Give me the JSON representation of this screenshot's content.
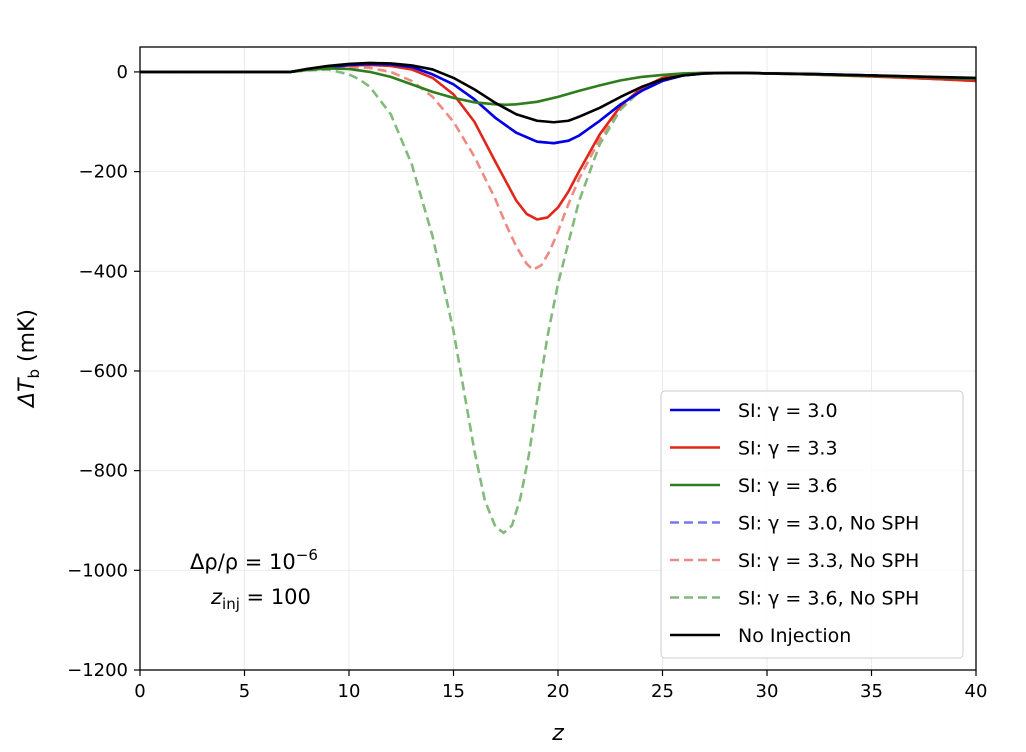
{
  "chart_data": {
    "type": "line",
    "xlabel": "z",
    "ylabel": "ΔT_b (mK)",
    "ylabel_parts": {
      "main": "ΔT",
      "sub": "b",
      "unit": " (mK)"
    },
    "xlim": [
      0,
      40
    ],
    "ylim": [
      -1200,
      50
    ],
    "xticks": [
      0,
      5,
      10,
      15,
      20,
      25,
      30,
      35,
      40
    ],
    "yticks": [
      0,
      -200,
      -400,
      -600,
      -800,
      -1000,
      -1200
    ],
    "xtick_labels": [
      "0",
      "5",
      "10",
      "15",
      "20",
      "25",
      "30",
      "35",
      "40"
    ],
    "ytick_labels": [
      "0",
      "−200",
      "−400",
      "−600",
      "−800",
      "−1000",
      "−1200"
    ],
    "grid": true,
    "legend_position": "lower-right",
    "annotation": {
      "line1": {
        "pre": "Δρ/ρ = 10",
        "sup": "−6"
      },
      "line2": {
        "pre": "z",
        "sub": "inj",
        "post": " = 100"
      }
    },
    "series": [
      {
        "name": "SI: γ = 3.0",
        "color": "#0000e6",
        "style": "solid",
        "x": [
          0,
          7,
          7.2,
          8,
          9,
          10,
          11,
          12,
          13,
          14,
          15,
          16,
          17,
          18,
          19,
          19.8,
          20.5,
          21,
          22,
          23,
          24,
          25,
          26,
          27,
          28,
          29,
          30,
          32,
          35,
          38,
          40
        ],
        "y": [
          0,
          0,
          0,
          5,
          10,
          14,
          16,
          15,
          10,
          -5,
          -25,
          -55,
          -92,
          -122,
          -140,
          -143,
          -138,
          -128,
          -98,
          -65,
          -38,
          -18,
          -7,
          -3,
          -2,
          -2,
          -3,
          -4,
          -7,
          -11,
          -14
        ]
      },
      {
        "name": "SI: γ = 3.3",
        "color": "#e0271a",
        "style": "solid",
        "x": [
          0,
          7,
          7.2,
          8,
          9,
          10,
          11,
          12,
          13,
          14,
          15,
          16,
          17,
          18,
          18.5,
          19,
          19.5,
          20,
          20.5,
          21,
          22,
          23,
          24,
          25,
          26,
          27,
          28,
          29,
          30,
          32,
          35,
          38,
          40
        ],
        "y": [
          0,
          0,
          0,
          5,
          10,
          13,
          14,
          12,
          5,
          -12,
          -45,
          -100,
          -180,
          -258,
          -285,
          -296,
          -292,
          -272,
          -240,
          -200,
          -125,
          -68,
          -32,
          -12,
          -4,
          -2,
          -2,
          -2,
          -3,
          -5,
          -9,
          -14,
          -18
        ]
      },
      {
        "name": "SI: γ = 3.6",
        "color": "#2e7d1e",
        "style": "solid",
        "x": [
          0,
          7,
          7.2,
          8,
          9,
          10,
          11,
          12,
          13,
          14,
          15,
          16,
          17,
          17.5,
          18,
          19,
          20,
          21,
          22,
          23,
          24,
          25,
          26,
          27,
          28,
          29,
          30,
          32,
          35,
          38,
          40
        ],
        "y": [
          0,
          0,
          0,
          4,
          7,
          6,
          0,
          -10,
          -25,
          -40,
          -52,
          -61,
          -65,
          -66,
          -65,
          -60,
          -50,
          -38,
          -27,
          -17,
          -10,
          -6,
          -3,
          -2,
          -2,
          -2,
          -3,
          -5,
          -8,
          -11,
          -14
        ]
      },
      {
        "name": "SI: γ = 3.0, No SPH",
        "color": "#7878ee",
        "style": "dashed",
        "x": [
          0,
          7,
          7.2,
          8,
          9,
          10,
          11,
          12,
          13,
          14,
          15,
          16,
          17,
          18,
          19,
          19.8,
          20.5,
          21,
          22,
          23,
          24,
          25,
          26,
          27,
          28,
          29,
          30,
          32,
          35,
          38,
          40
        ],
        "y": [
          0,
          0,
          0,
          5,
          10,
          14,
          16,
          15,
          10,
          -5,
          -25,
          -55,
          -92,
          -122,
          -140,
          -143,
          -138,
          -128,
          -98,
          -65,
          -38,
          -18,
          -7,
          -3,
          -2,
          -2,
          -3,
          -4,
          -7,
          -11,
          -14
        ]
      },
      {
        "name": "SI: γ = 3.3, No SPH",
        "color": "#ee8a84",
        "style": "dashed",
        "x": [
          0,
          7,
          7.2,
          8,
          9,
          10,
          11,
          12,
          13,
          14,
          15,
          16,
          17,
          17.5,
          18,
          18.5,
          18.8,
          19.2,
          19.6,
          20,
          20.5,
          21,
          22,
          23,
          24,
          25,
          26,
          27,
          28,
          30,
          32,
          35,
          38,
          40
        ],
        "y": [
          0,
          0,
          0,
          4,
          8,
          10,
          8,
          0,
          -18,
          -50,
          -100,
          -170,
          -255,
          -305,
          -350,
          -385,
          -397,
          -388,
          -360,
          -320,
          -265,
          -215,
          -135,
          -75,
          -35,
          -12,
          -4,
          -2,
          -2,
          -3,
          -5,
          -9,
          -14,
          -18
        ]
      },
      {
        "name": "SI: γ = 3.6, No SPH",
        "color": "#82ba7c",
        "style": "dashed",
        "x": [
          0,
          7,
          7.2,
          8,
          9,
          10,
          10.5,
          11,
          12,
          13,
          14,
          15,
          15.5,
          16,
          16.5,
          17,
          17.4,
          17.8,
          18.2,
          18.6,
          19,
          19.5,
          20,
          21,
          22,
          23,
          24,
          25,
          26,
          27,
          28,
          30,
          32,
          35,
          38,
          40
        ],
        "y": [
          0,
          0,
          0,
          3,
          5,
          -5,
          -15,
          -30,
          -85,
          -185,
          -330,
          -520,
          -640,
          -760,
          -860,
          -912,
          -925,
          -910,
          -855,
          -770,
          -660,
          -530,
          -425,
          -260,
          -145,
          -75,
          -35,
          -14,
          -5,
          -3,
          -2,
          -3,
          -5,
          -9,
          -14,
          -18
        ]
      },
      {
        "name": "No Injection",
        "color": "#000000",
        "style": "solid",
        "x": [
          0,
          7,
          7.2,
          8,
          9,
          10,
          11,
          12,
          13,
          14,
          15,
          16,
          17,
          18,
          19,
          19.8,
          20.5,
          21,
          22,
          23,
          24,
          25,
          26,
          27,
          28,
          29,
          30,
          32,
          35,
          38,
          40
        ],
        "y": [
          0,
          0,
          0,
          6,
          12,
          16,
          18,
          17,
          13,
          5,
          -12,
          -35,
          -62,
          -85,
          -98,
          -101,
          -98,
          -90,
          -72,
          -50,
          -30,
          -15,
          -7,
          -3,
          -2,
          -2,
          -3,
          -4,
          -7,
          -10,
          -12
        ]
      }
    ]
  }
}
